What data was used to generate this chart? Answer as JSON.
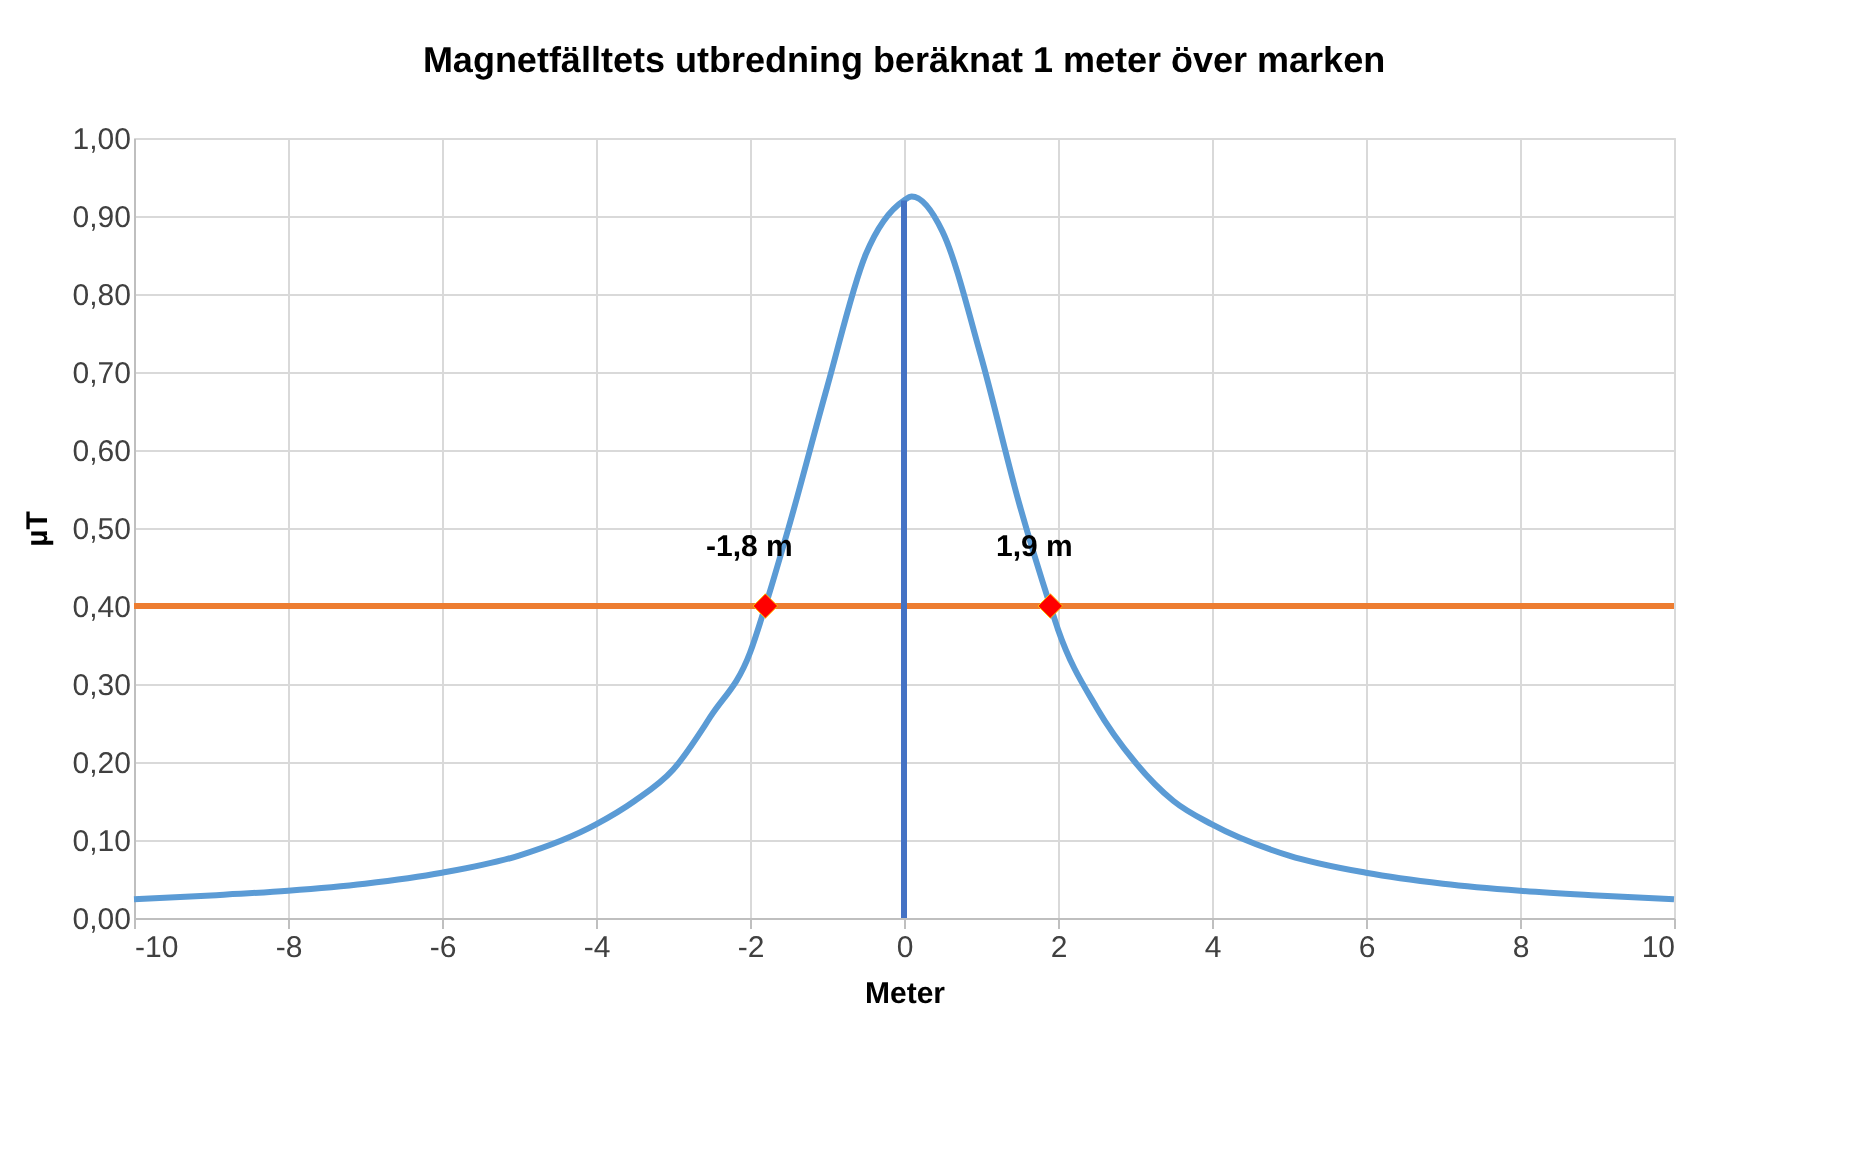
{
  "chart_data": {
    "type": "line",
    "title": "Magnetfälltets utbredning beräknat 1 meter över marken",
    "xlabel": "Meter",
    "ylabel": "µT",
    "series": [
      {
        "color": "#5b9bd5",
        "x": [
          -10,
          -9,
          -8,
          -7,
          -6,
          -5,
          -4,
          -3.5,
          -3,
          -2.5,
          -2,
          -1.8,
          -1.5,
          -1,
          -0.5,
          0,
          0.1,
          0.5,
          1,
          1.5,
          1.9,
          2,
          2.5,
          3,
          3.5,
          4,
          5,
          6,
          7,
          8,
          9,
          10
        ],
        "values": [
          0.024,
          0.029,
          0.035,
          0.044,
          0.058,
          0.08,
          0.12,
          0.15,
          0.19,
          0.26,
          0.34,
          0.4,
          0.5,
          0.68,
          0.85,
          0.92,
          0.925,
          0.88,
          0.72,
          0.53,
          0.4,
          0.37,
          0.27,
          0.2,
          0.15,
          0.12,
          0.08,
          0.058,
          0.044,
          0.035,
          0.029,
          0.024
        ]
      },
      {
        "color": "#4472c4",
        "x": [
          0,
          0
        ],
        "values": [
          0,
          0.92
        ]
      },
      {
        "type": "scatter",
        "marker": "diamond",
        "color": "#ff0000",
        "x": [
          -1.8,
          1.9
        ],
        "values": [
          0.4,
          0.4
        ]
      }
    ],
    "ref_lines": [
      {
        "axis": "y",
        "value": 0.4,
        "color": "#ed7d31"
      }
    ],
    "xlim": [
      -10,
      10
    ],
    "xticks": [
      -10,
      -8,
      -6,
      -4,
      -2,
      0,
      2,
      4,
      6,
      8,
      10
    ],
    "ylim": [
      0,
      1
    ],
    "yticks": [
      {
        "value": 0,
        "label": "0,00"
      },
      {
        "value": 0.1,
        "label": "0,10"
      },
      {
        "value": 0.2,
        "label": "0,20"
      },
      {
        "value": 0.3,
        "label": "0,30"
      },
      {
        "value": 0.4,
        "label": "0,40"
      },
      {
        "value": 0.5,
        "label": "0,50"
      },
      {
        "value": 0.6,
        "label": "0,60"
      },
      {
        "value": 0.7,
        "label": "0,70"
      },
      {
        "value": 0.8,
        "label": "0,80"
      },
      {
        "value": 0.9,
        "label": "0,90"
      },
      {
        "value": 1,
        "label": "1,00"
      }
    ],
    "annotations": [
      {
        "text": "-1,8 m",
        "x": -1.8,
        "y": 0.4
      },
      {
        "text": "1,9 m",
        "x": 1.9,
        "y": 0.4
      }
    ],
    "grid": true
  }
}
